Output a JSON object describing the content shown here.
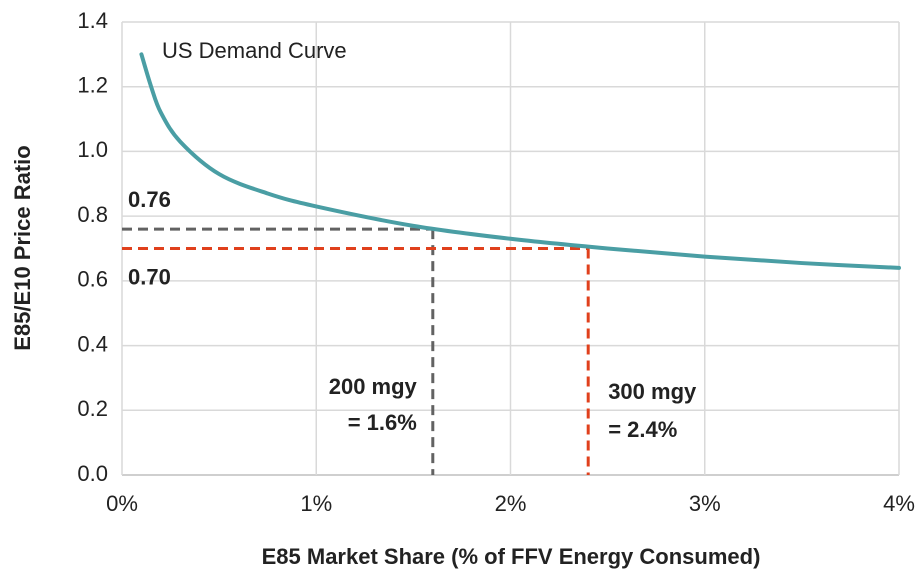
{
  "chart_data": {
    "type": "line",
    "x_label": "E85 Market Share (% of FFV Energy Consumed)",
    "y_label": "E85/E10 Price Ratio",
    "xlim": [
      0,
      4
    ],
    "ylim": [
      0,
      1.4
    ],
    "xticks": [
      {
        "value": 0,
        "label": "0%"
      },
      {
        "value": 1,
        "label": "1%"
      },
      {
        "value": 2,
        "label": "2%"
      },
      {
        "value": 3,
        "label": "3%"
      },
      {
        "value": 4,
        "label": "4%"
      }
    ],
    "yticks": [
      {
        "value": 0,
        "label": "0.0"
      },
      0.2,
      0.4,
      0.6,
      0.8,
      {
        "value": 1,
        "label": "1.0"
      },
      1.2,
      1.4
    ],
    "grid": true,
    "series": [
      {
        "name": "US Demand Curve",
        "color": "#4a9ea4",
        "x": [
          0.1,
          0.15,
          0.2,
          0.3,
          0.5,
          0.75,
          1.0,
          1.5,
          2.0,
          2.5,
          3.0,
          3.5,
          4.0
        ],
        "values": [
          1.3,
          1.2,
          1.12,
          1.03,
          0.93,
          0.87,
          0.83,
          0.77,
          0.73,
          0.7,
          0.675,
          0.655,
          0.64
        ]
      }
    ],
    "markers": [
      {
        "x": 1.6,
        "y": 0.76,
        "color": "#626262",
        "y_label": "0.76",
        "x_label": [
          "200 mgy",
          "= 1.6%"
        ]
      },
      {
        "x": 2.4,
        "y": 0.7,
        "color": "#e0401c",
        "y_label": "0.70",
        "x_label": [
          "300 mgy",
          "= 2.4%"
        ]
      }
    ]
  }
}
